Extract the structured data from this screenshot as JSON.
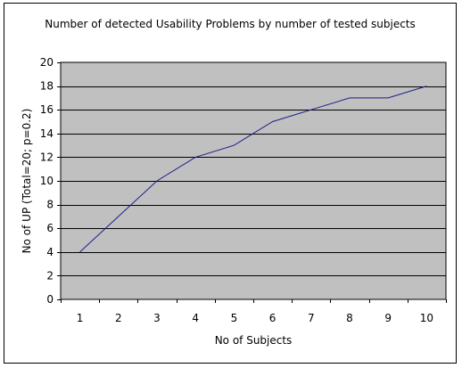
{
  "chart_data": {
    "type": "line",
    "title": "Number of detected Usability Problems by number of tested subjects",
    "xlabel": "No of Subjects",
    "ylabel": "No of UP (Total=20; p=0.2)",
    "categories": [
      "1",
      "2",
      "3",
      "4",
      "5",
      "6",
      "7",
      "8",
      "9",
      "10"
    ],
    "series": [
      {
        "values": [
          4,
          7,
          10,
          12,
          13,
          15,
          16,
          17,
          17,
          18
        ]
      }
    ],
    "ylim": [
      0,
      20
    ],
    "yticks": [
      0,
      2,
      4,
      6,
      8,
      10,
      12,
      14,
      16,
      18,
      20
    ],
    "grid": "horizontal",
    "legend": "none",
    "colors": {
      "plot_background": "#c0c0c0",
      "line": "#1c1c8c",
      "grid": "#000000"
    }
  }
}
